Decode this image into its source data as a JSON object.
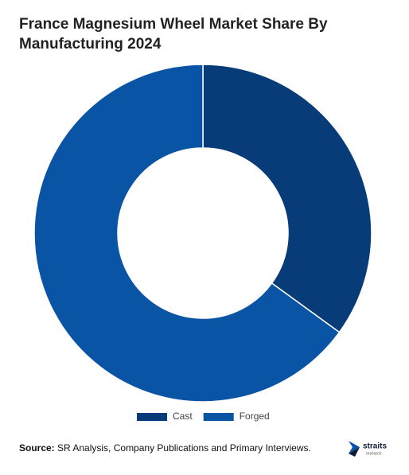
{
  "chart_data": {
    "type": "donut",
    "title": "France Magnesium Wheel Market Share By Manufacturing 2024",
    "categories": [
      "Cast",
      "Forged"
    ],
    "values": [
      35,
      65
    ],
    "colors": [
      "#073c78",
      "#0a54a6"
    ],
    "legend": "bottom"
  },
  "source": {
    "label": "Source:",
    "text": "SR Analysis, Company Publications and Primary Interviews."
  },
  "logo": {
    "name": "straits",
    "tagline": "research"
  }
}
